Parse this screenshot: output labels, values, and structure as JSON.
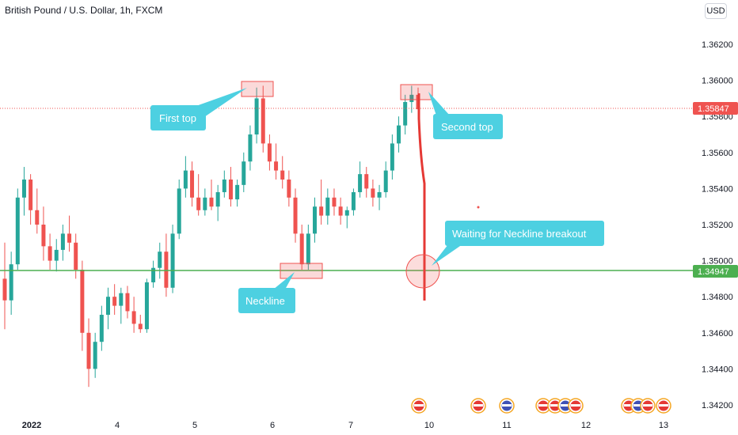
{
  "header": {
    "title": "British Pound / U.S. Dollar, 1h, FXCM",
    "currency_button": "USD"
  },
  "chart_data": {
    "type": "candlestick",
    "symbol": "British Pound / U.S. Dollar",
    "interval": "1h",
    "source": "FXCM",
    "ylim": [
      1.3415,
      1.3635
    ],
    "y_ticks": [
      "1.34200",
      "1.34400",
      "1.34600",
      "1.34800",
      "1.35000",
      "1.35200",
      "1.35400",
      "1.35600",
      "1.35800",
      "1.36000",
      "1.36200"
    ],
    "x_ticks": [
      "2022",
      "4",
      "5",
      "6",
      "7",
      "10",
      "11",
      "12",
      "13"
    ],
    "colors": {
      "up": "#26a69a",
      "down": "#ef5350",
      "neckline": "#4caf50",
      "last_price_line": "#ef5350",
      "callout": "#4dd0e1"
    },
    "last_price": "1.35847",
    "neckline": {
      "price": "1.34947"
    },
    "candles_ohlc": [
      [
        1.349,
        1.351,
        1.3462,
        1.3478
      ],
      [
        1.3478,
        1.3505,
        1.347,
        1.3498
      ],
      [
        1.3498,
        1.354,
        1.3495,
        1.3535
      ],
      [
        1.3535,
        1.3552,
        1.3525,
        1.3545
      ],
      [
        1.3545,
        1.3548,
        1.352,
        1.3528
      ],
      [
        1.3528,
        1.354,
        1.3515,
        1.352
      ],
      [
        1.352,
        1.353,
        1.35,
        1.3508
      ],
      [
        1.3508,
        1.3515,
        1.3495,
        1.35
      ],
      [
        1.35,
        1.3512,
        1.3494,
        1.3506
      ],
      [
        1.3506,
        1.352,
        1.35,
        1.3515
      ],
      [
        1.3515,
        1.3525,
        1.3505,
        1.351
      ],
      [
        1.351,
        1.3515,
        1.349,
        1.3495
      ],
      [
        1.3495,
        1.35,
        1.345,
        1.346
      ],
      [
        1.346,
        1.3468,
        1.343,
        1.344
      ],
      [
        1.344,
        1.346,
        1.3435,
        1.3455
      ],
      [
        1.3455,
        1.3475,
        1.345,
        1.347
      ],
      [
        1.347,
        1.3485,
        1.3462,
        1.348
      ],
      [
        1.348,
        1.3487,
        1.347,
        1.3475
      ],
      [
        1.3475,
        1.3485,
        1.3465,
        1.3482
      ],
      [
        1.3482,
        1.3486,
        1.3468,
        1.3472
      ],
      [
        1.3472,
        1.348,
        1.346,
        1.3465
      ],
      [
        1.3465,
        1.347,
        1.346,
        1.3462
      ],
      [
        1.3462,
        1.349,
        1.346,
        1.3488
      ],
      [
        1.3488,
        1.35,
        1.3485,
        1.3496
      ],
      [
        1.3496,
        1.351,
        1.349,
        1.3505
      ],
      [
        1.3505,
        1.3515,
        1.348,
        1.3485
      ],
      [
        1.3485,
        1.352,
        1.3482,
        1.3515
      ],
      [
        1.3515,
        1.3545,
        1.3512,
        1.354
      ],
      [
        1.354,
        1.3558,
        1.3535,
        1.355
      ],
      [
        1.355,
        1.3555,
        1.353,
        1.3535
      ],
      [
        1.3535,
        1.3548,
        1.3525,
        1.3528
      ],
      [
        1.3528,
        1.354,
        1.3525,
        1.3535
      ],
      [
        1.3535,
        1.3545,
        1.3528,
        1.353
      ],
      [
        1.353,
        1.3542,
        1.3522,
        1.3538
      ],
      [
        1.3538,
        1.355,
        1.3535,
        1.3545
      ],
      [
        1.3545,
        1.3552,
        1.353,
        1.3534
      ],
      [
        1.3534,
        1.3545,
        1.353,
        1.3542
      ],
      [
        1.3542,
        1.356,
        1.3538,
        1.3555
      ],
      [
        1.3555,
        1.3575,
        1.355,
        1.357
      ],
      [
        1.357,
        1.3596,
        1.3565,
        1.359
      ],
      [
        1.359,
        1.3597,
        1.356,
        1.3565
      ],
      [
        1.3565,
        1.357,
        1.355,
        1.3555
      ],
      [
        1.3555,
        1.3565,
        1.3545,
        1.355
      ],
      [
        1.355,
        1.3558,
        1.354,
        1.3545
      ],
      [
        1.3545,
        1.355,
        1.353,
        1.3535
      ],
      [
        1.3535,
        1.354,
        1.351,
        1.3515
      ],
      [
        1.3515,
        1.352,
        1.3495,
        1.3498
      ],
      [
        1.3498,
        1.352,
        1.3495,
        1.3515
      ],
      [
        1.3515,
        1.3535,
        1.351,
        1.353
      ],
      [
        1.353,
        1.3545,
        1.352,
        1.3525
      ],
      [
        1.3525,
        1.354,
        1.352,
        1.3535
      ],
      [
        1.3535,
        1.354,
        1.3525,
        1.353
      ],
      [
        1.353,
        1.3535,
        1.352,
        1.3525
      ],
      [
        1.3525,
        1.353,
        1.3518,
        1.3528
      ],
      [
        1.3528,
        1.354,
        1.3525,
        1.3538
      ],
      [
        1.3538,
        1.3555,
        1.3535,
        1.3548
      ],
      [
        1.3548,
        1.3552,
        1.3535,
        1.354
      ],
      [
        1.354,
        1.3545,
        1.353,
        1.3535
      ],
      [
        1.3535,
        1.3542,
        1.3528,
        1.3538
      ],
      [
        1.3538,
        1.3555,
        1.3535,
        1.355
      ],
      [
        1.355,
        1.357,
        1.3545,
        1.3565
      ],
      [
        1.3565,
        1.358,
        1.356,
        1.3575
      ],
      [
        1.3575,
        1.3592,
        1.357,
        1.3588
      ],
      [
        1.3588,
        1.3597,
        1.3582,
        1.3592
      ],
      [
        1.3592,
        1.3596,
        1.358,
        1.3584
      ]
    ]
  },
  "annotations": {
    "first_top": "First top",
    "second_top": "Second top",
    "neckline": "Neckline",
    "waiting": "Waiting for Neckline breakout"
  }
}
